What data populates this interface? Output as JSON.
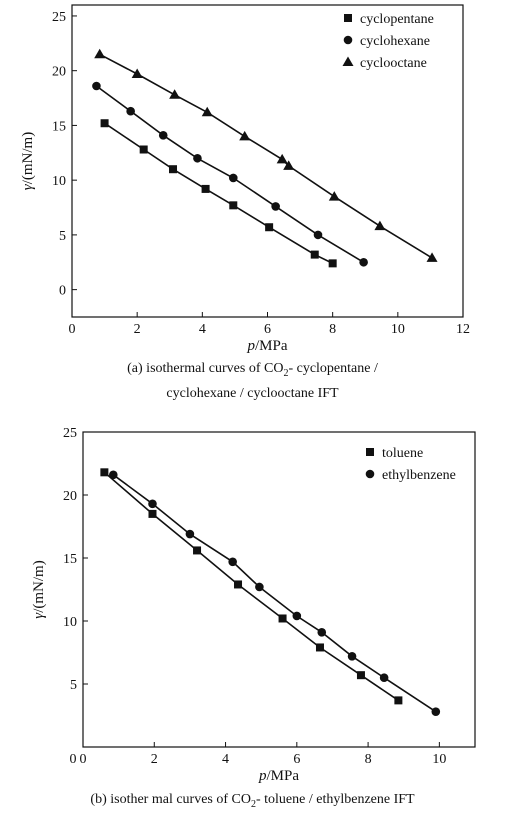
{
  "captions": {
    "a": {
      "line1_prefix": "(a) isothermal curves of CO",
      "line1_sub": "2",
      "line1_suffix": "- cyclopentane /",
      "line2": "cyclohexane / cyclooctane IFT"
    },
    "b": {
      "prefix": "(b) isother mal curves of CO",
      "sub": "2",
      "suffix": "- toluene / ethylbenzene IFT"
    }
  },
  "chart_data": [
    {
      "type": "line",
      "xlabel": "p/MPa",
      "ylabel": "γ/(mN/m)",
      "xlim": [
        0,
        12
      ],
      "ylim": [
        -2.5,
        26
      ],
      "xticks": [
        "0",
        "2",
        "4",
        "6",
        "8",
        "10",
        "12"
      ],
      "yticks": [
        "0",
        "5",
        "10",
        "15",
        "20",
        "25"
      ],
      "grid": false,
      "legend_position": "top-right",
      "series": [
        {
          "name": "cyclopentane",
          "marker": "square",
          "x": [
            1.0,
            2.2,
            3.1,
            4.1,
            4.95,
            6.05,
            7.45,
            8.0
          ],
          "y": [
            15.2,
            12.8,
            11.0,
            9.2,
            7.7,
            5.7,
            3.2,
            2.4
          ]
        },
        {
          "name": "cyclohexane",
          "marker": "circle",
          "x": [
            0.75,
            1.8,
            2.8,
            3.85,
            4.95,
            6.25,
            7.55,
            8.95
          ],
          "y": [
            18.6,
            16.3,
            14.1,
            12.0,
            10.2,
            7.6,
            5.0,
            2.5
          ]
        },
        {
          "name": "cyclooctane",
          "marker": "triangle",
          "x": [
            0.85,
            2.0,
            3.15,
            4.15,
            5.3,
            6.45,
            6.65,
            8.05,
            9.45,
            11.05
          ],
          "y": [
            21.5,
            19.7,
            17.8,
            16.2,
            14.0,
            11.9,
            11.3,
            8.5,
            5.8,
            2.9
          ]
        }
      ]
    },
    {
      "type": "line",
      "xlabel": "p/MPa",
      "ylabel": "γ/(mN/m)",
      "xlim": [
        0,
        11
      ],
      "ylim": [
        0,
        25
      ],
      "xticks": [
        "0",
        "2",
        "4",
        "6",
        "8",
        "10"
      ],
      "yticks": [
        "5",
        "10",
        "15",
        "20",
        "25"
      ],
      "grid": false,
      "legend_position": "top-right",
      "series": [
        {
          "name": "toluene",
          "marker": "square",
          "x": [
            0.6,
            1.95,
            3.2,
            4.35,
            5.6,
            6.65,
            7.8,
            8.85
          ],
          "y": [
            21.8,
            18.5,
            15.6,
            12.9,
            10.2,
            7.9,
            5.7,
            3.7
          ]
        },
        {
          "name": "ethylbenzene",
          "marker": "circle",
          "x": [
            0.85,
            1.95,
            3.0,
            4.2,
            4.95,
            6.0,
            6.7,
            7.55,
            8.45,
            9.9
          ],
          "y": [
            21.6,
            19.3,
            16.9,
            14.7,
            12.7,
            10.4,
            9.1,
            7.2,
            5.5,
            2.8
          ]
        }
      ]
    }
  ]
}
